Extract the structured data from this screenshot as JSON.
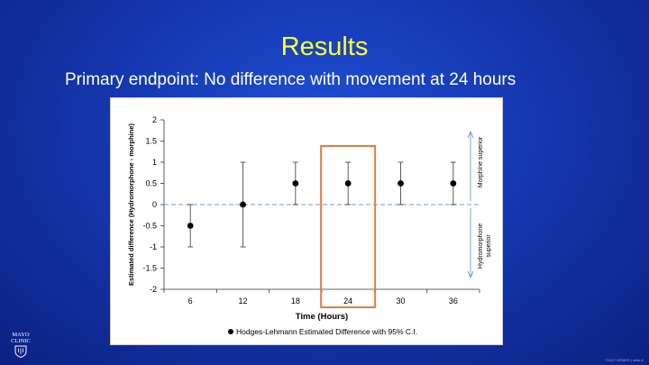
{
  "slide": {
    "title": "Results",
    "subtitle": "Primary endpoint: No difference with movement at 24 hours",
    "logo_text_line1": "MAYO",
    "logo_text_line2": "CLINIC",
    "copyright": "©2017 MFMER | slide-6"
  },
  "colors": {
    "title": "#ffff33",
    "background": "#1538b0",
    "highlight_box": "#e87b3a",
    "zero_line": "#8fb0d8"
  },
  "chart_data": {
    "type": "scatter",
    "title": "",
    "xlabel": "Time (Hours)",
    "ylabel": "Estimated difference (Hydromorphone - morphine)",
    "ylim": [
      -2,
      2
    ],
    "yticks": [
      "2",
      "1.5",
      "1",
      "0.5",
      "0",
      "-0.5",
      "-1",
      "-1.5",
      "-2"
    ],
    "categories": [
      "6",
      "12",
      "18",
      "24",
      "30",
      "36"
    ],
    "series": [
      {
        "name": "Hodges-Lehmann Estimated Difference with 95% C.I.",
        "values": [
          -0.5,
          0,
          0.5,
          0.5,
          0.5,
          0.5
        ],
        "ci_low": [
          -1,
          -1,
          0,
          0,
          0,
          0
        ],
        "ci_high": [
          0,
          1,
          1,
          1,
          1,
          1
        ]
      }
    ],
    "highlight_category": "24",
    "right_annotations": {
      "upper": "Morphine superior",
      "lower": "Hydromorphone superior"
    },
    "legend": {
      "position": "bottom",
      "label": "Hodges-Lehmann Estimated Difference with 95% C.I."
    }
  }
}
